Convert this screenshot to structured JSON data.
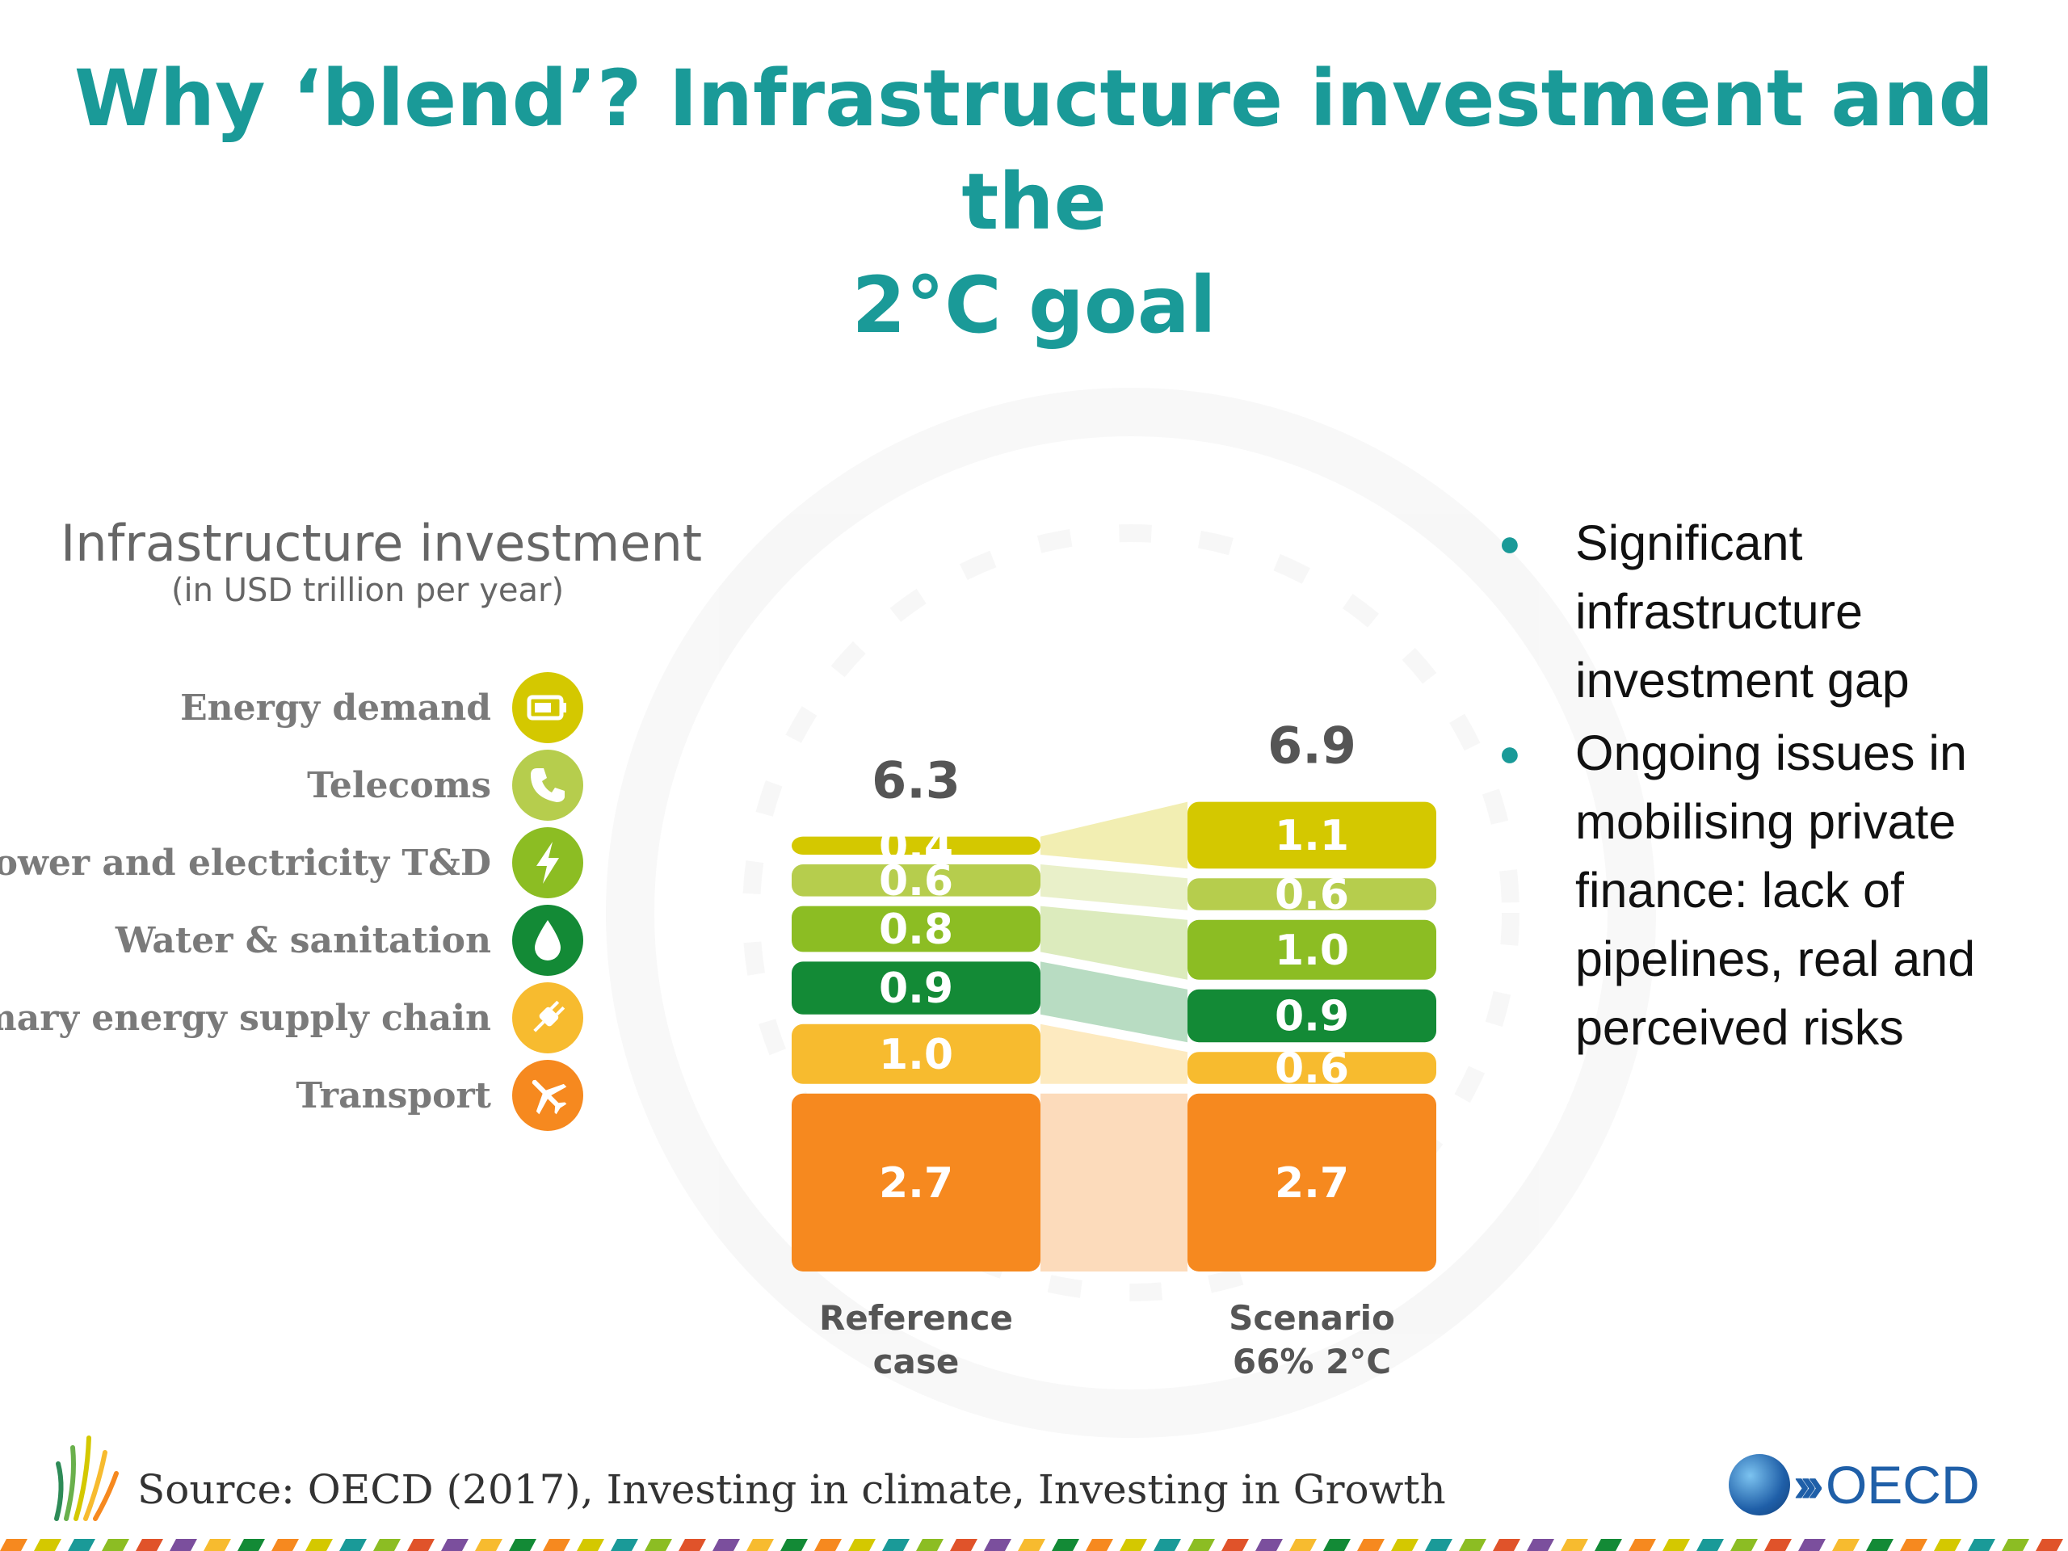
{
  "slide": {
    "title_line1": "Why ‘blend’? Infrastructure investment and the",
    "title_line2": "2°C goal"
  },
  "legend": {
    "heading": "Infrastructure investment",
    "subheading": "(in USD trillion per year)",
    "items": [
      {
        "label": "Energy demand",
        "icon": "battery-icon",
        "color": "#d4c800"
      },
      {
        "label": "Telecoms",
        "icon": "phone-icon",
        "color": "#b6cd4d"
      },
      {
        "label": "Power and electricity T&D",
        "icon": "lightning-icon",
        "color": "#8cbd23"
      },
      {
        "label": "Water & sanitation",
        "icon": "water-drop-icon",
        "color": "#138a36"
      },
      {
        "label": "Primary energy supply chain",
        "icon": "plug-icon",
        "color": "#f7bb2f"
      },
      {
        "label": "Transport",
        "icon": "airplane-icon",
        "color": "#f6891f"
      }
    ]
  },
  "chart_data": {
    "type": "bar",
    "stacked": true,
    "unit": "USD trillion per year",
    "categories": [
      "Reference case",
      "Scenario 66% 2°C"
    ],
    "category_label_lines": [
      [
        "Reference",
        "case"
      ],
      [
        "Scenario",
        "66% 2°C"
      ]
    ],
    "totals": [
      "6.3",
      "6.9"
    ],
    "series": [
      {
        "name": "Transport",
        "values": [
          2.7,
          2.7
        ],
        "labels": [
          "2.7",
          "2.7"
        ],
        "color": "#f6891f"
      },
      {
        "name": "Primary energy supply chain",
        "values": [
          1.0,
          0.6
        ],
        "labels": [
          "1.0",
          "0.6"
        ],
        "color": "#f7bb2f"
      },
      {
        "name": "Water & sanitation",
        "values": [
          0.9,
          0.9
        ],
        "labels": [
          "0.9",
          "0.9"
        ],
        "color": "#138a36"
      },
      {
        "name": "Power and electricity T&D",
        "values": [
          0.8,
          1.0
        ],
        "labels": [
          "0.8",
          "1.0"
        ],
        "color": "#8cbd23"
      },
      {
        "name": "Telecoms",
        "values": [
          0.6,
          0.6
        ],
        "labels": [
          "0.6",
          "0.6"
        ],
        "color": "#b6cd4d"
      },
      {
        "name": "Energy demand",
        "values": [
          0.4,
          1.1
        ],
        "labels": [
          "0.4",
          "1.1"
        ],
        "color": "#d4c800"
      }
    ]
  },
  "bullets": [
    "Significant infrastructure investment gap",
    "Ongoing issues in mobilising private finance: lack of pipelines, real and perceived risks"
  ],
  "footer": {
    "source": "Source: OECD (2017), Investing in climate, Investing in Growth",
    "logo_text": "OECD"
  },
  "colors": {
    "title": "#1a9a98",
    "bullet": "#1a9a98",
    "oecd_blue": "#1f5fa8"
  }
}
